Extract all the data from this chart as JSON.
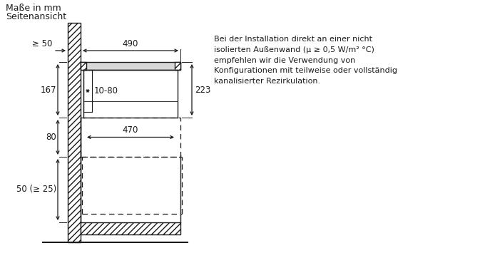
{
  "title_line1": "Maße in mm",
  "title_line2": "Seitenansicht",
  "annotation_text": "Bei der Installation direkt an einer nicht\nisolierten Außenwand (μ ≥ 0,5 W/m² °C)\nempfehlen wir die Verwendung von\nKonfigurationen mit teilweise oder vollständig\nkanalisierter Rezirkulation.",
  "bg_color": "#ffffff",
  "line_color": "#1a1a1a",
  "dim_490": "490",
  "dim_470": "470",
  "dim_167": "167",
  "dim_80": "80",
  "dim_50_ge25": "50 (≥ 25)",
  "dim_ge50": "≥ 50",
  "dim_1080": "10-80",
  "dim_223": "223",
  "fontsize": 8.5
}
